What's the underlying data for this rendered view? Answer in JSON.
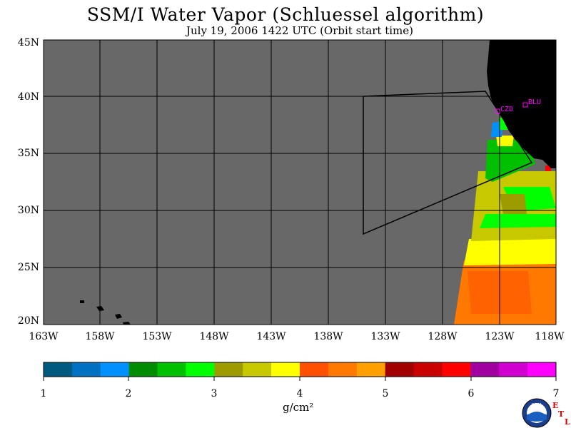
{
  "title": "SSM/I Water Vapor (Schluessel algorithm)",
  "subtitle": "July 19, 2006  1422 UTC  (Orbit start time)",
  "map": {
    "lat_labels": [
      "45N",
      "40N",
      "35N",
      "30N",
      "25N",
      "20N"
    ],
    "lon_labels": [
      "163W",
      "158W",
      "153W",
      "148W",
      "143W",
      "138W",
      "133W",
      "128W",
      "123W",
      "118W"
    ],
    "lat_range": [
      20,
      45
    ],
    "lon_range": [
      -163,
      -118
    ],
    "background_color": "#686868",
    "land_color": "#000000",
    "sites": [
      {
        "label": "CZD"
      },
      {
        "label": "BLU"
      }
    ]
  },
  "colorbar": {
    "tick_labels": [
      "1",
      "2",
      "3",
      "4",
      "5",
      "6",
      "7"
    ],
    "units": "g/cm²",
    "colors": [
      "#005a80",
      "#0070c0",
      "#0090ff",
      "#008c00",
      "#00c000",
      "#00ff00",
      "#9c9c00",
      "#c8c800",
      "#ffff00",
      "#ff5000",
      "#ff7800",
      "#ffa000",
      "#a00000",
      "#c80000",
      "#ff0000",
      "#a000a0",
      "#d000d0",
      "#ff00ff"
    ]
  },
  "logo": {
    "text": "NOAA",
    "etl_letters": [
      "E",
      "T",
      "L"
    ]
  }
}
